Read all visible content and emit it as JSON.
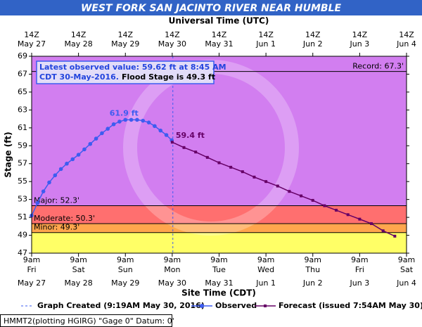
{
  "chart_data": {
    "type": "hydrograph",
    "title": "WEST FORK SAN JACINTO RIVER NEAR HUMBLE",
    "top_axis_title": "Universal Time (UTC)",
    "x_axis_title": "Site Time (CDT)",
    "y_axis_title": "Stage (ft)",
    "xlim": [
      "2016-05-27T09:00-05:00",
      "2016-06-04T09:00-05:00"
    ],
    "ylim": [
      47,
      69
    ],
    "yticks": [
      47,
      49,
      51,
      53,
      55,
      57,
      59,
      61,
      63,
      65,
      67,
      69
    ],
    "xticks": [
      {
        "value": "2016-05-27T09:00-05:00",
        "label": [
          "9am",
          "Fri",
          "May 27"
        ]
      },
      {
        "value": "2016-05-28T09:00-05:00",
        "label": [
          "9am",
          "Sat",
          "May 28"
        ]
      },
      {
        "value": "2016-05-29T09:00-05:00",
        "label": [
          "9am",
          "Sun",
          "May 29"
        ]
      },
      {
        "value": "2016-05-30T09:00-05:00",
        "label": [
          "9am",
          "Mon",
          "May 30"
        ]
      },
      {
        "value": "2016-05-31T09:00-05:00",
        "label": [
          "9am",
          "Tue",
          "May 31"
        ]
      },
      {
        "value": "2016-06-01T09:00-05:00",
        "label": [
          "9am",
          "Wed",
          "Jun 1"
        ]
      },
      {
        "value": "2016-06-02T09:00-05:00",
        "label": [
          "9am",
          "Thu",
          "Jun 2"
        ]
      },
      {
        "value": "2016-06-03T09:00-05:00",
        "label": [
          "9am",
          "Fri",
          "Jun 3"
        ]
      },
      {
        "value": "2016-06-04T09:00-05:00",
        "label": [
          "9am",
          "Sat",
          "Jun 4"
        ]
      }
    ],
    "top_xticks": [
      {
        "value": "2016-05-27T14:00Z",
        "label": [
          "14Z",
          "May 27"
        ]
      },
      {
        "value": "2016-05-28T14:00Z",
        "label": [
          "14Z",
          "May 28"
        ]
      },
      {
        "value": "2016-05-29T14:00Z",
        "label": [
          "14Z",
          "May 29"
        ]
      },
      {
        "value": "2016-05-30T14:00Z",
        "label": [
          "14Z",
          "May 30"
        ]
      },
      {
        "value": "2016-05-31T14:00Z",
        "label": [
          "14Z",
          "May 31"
        ]
      },
      {
        "value": "2016-06-01T14:00Z",
        "label": [
          "14Z",
          "Jun 1"
        ]
      },
      {
        "value": "2016-06-02T14:00Z",
        "label": [
          "14Z",
          "Jun 2"
        ]
      },
      {
        "value": "2016-06-03T14:00Z",
        "label": [
          "14Z",
          "Jun 3"
        ]
      },
      {
        "value": "2016-06-04T14:00Z",
        "label": [
          "14Z",
          "Jun 4"
        ]
      }
    ],
    "thresholds": [
      {
        "label": "Record: 67.3'",
        "value": 67.3,
        "side": "right"
      },
      {
        "label": "Major: 52.3'",
        "value": 52.3,
        "side": "left",
        "color": "#d27ef0"
      },
      {
        "label": "Moderate: 50.3'",
        "value": 50.3,
        "side": "left",
        "color": "#ff6f6f"
      },
      {
        "label": "Minor: 49.3'",
        "value": 49.3,
        "side": "left",
        "color": "#ffa64d"
      }
    ],
    "below_color": "#ffff66",
    "info_box": {
      "line1": "Latest observed value: 59.62 ft at 8:45 AM",
      "line2": "CDT 30-May-2016.",
      "line2_flood": "Flood Stage is 49.3 ft"
    },
    "created": {
      "label": "Graph Created (9:19AM May 30, 2016)",
      "x": "2016-05-30T09:19-05:00"
    },
    "series": [
      {
        "name": "Observed",
        "color": "#3d5cf0",
        "marker": "circle",
        "x": [
          "2016-05-27T09:00-05:00",
          "2016-05-27T12:00-05:00",
          "2016-05-27T15:00-05:00",
          "2016-05-27T18:00-05:00",
          "2016-05-27T21:00-05:00",
          "2016-05-28T00:00-05:00",
          "2016-05-28T03:00-05:00",
          "2016-05-28T06:00-05:00",
          "2016-05-28T09:00-05:00",
          "2016-05-28T12:00-05:00",
          "2016-05-28T15:00-05:00",
          "2016-05-28T18:00-05:00",
          "2016-05-28T21:00-05:00",
          "2016-05-29T00:00-05:00",
          "2016-05-29T03:00-05:00",
          "2016-05-29T06:00-05:00",
          "2016-05-29T09:00-05:00",
          "2016-05-29T12:00-05:00",
          "2016-05-29T15:00-05:00",
          "2016-05-29T18:00-05:00",
          "2016-05-29T21:00-05:00",
          "2016-05-30T00:00-05:00",
          "2016-05-30T03:00-05:00",
          "2016-05-30T06:00-05:00",
          "2016-05-30T08:45-05:00"
        ],
        "values": [
          51.2,
          52.6,
          53.9,
          54.9,
          55.7,
          56.4,
          57.0,
          57.5,
          58.0,
          58.6,
          59.2,
          59.8,
          60.4,
          60.9,
          61.4,
          61.7,
          61.9,
          61.9,
          61.9,
          61.8,
          61.6,
          61.2,
          60.7,
          60.2,
          59.62
        ]
      },
      {
        "name": "Forecast (issued 7:54AM May 30)",
        "color": "#660066",
        "marker": "square",
        "x": [
          "2016-05-30T09:00-05:00",
          "2016-05-30T15:00-05:00",
          "2016-05-30T21:00-05:00",
          "2016-05-31T03:00-05:00",
          "2016-05-31T09:00-05:00",
          "2016-05-31T15:00-05:00",
          "2016-05-31T21:00-05:00",
          "2016-06-01T03:00-05:00",
          "2016-06-01T09:00-05:00",
          "2016-06-01T15:00-05:00",
          "2016-06-01T21:00-05:00",
          "2016-06-02T03:00-05:00",
          "2016-06-02T09:00-05:00",
          "2016-06-02T15:00-05:00",
          "2016-06-02T21:00-05:00",
          "2016-06-03T03:00-05:00",
          "2016-06-03T09:00-05:00",
          "2016-06-03T15:00-05:00",
          "2016-06-03T21:00-05:00",
          "2016-06-04T03:00-05:00"
        ],
        "values": [
          59.4,
          58.8,
          58.3,
          57.7,
          57.1,
          56.6,
          56.1,
          55.5,
          55.0,
          54.5,
          53.9,
          53.4,
          52.9,
          52.3,
          51.8,
          51.3,
          50.8,
          50.3,
          49.5,
          48.9
        ]
      }
    ],
    "annotations": [
      {
        "text": "61.9 ft",
        "x": "2016-05-29T09:00-05:00",
        "y": 61.9,
        "color": "#3d5cf0"
      },
      {
        "text": "59.4 ft",
        "x": "2016-05-30T09:00-05:00",
        "y": 59.4,
        "color": "#660066"
      }
    ],
    "footer": "HMMT2(plotting HGIRG) \"Gage 0\" Datum: 0'"
  }
}
